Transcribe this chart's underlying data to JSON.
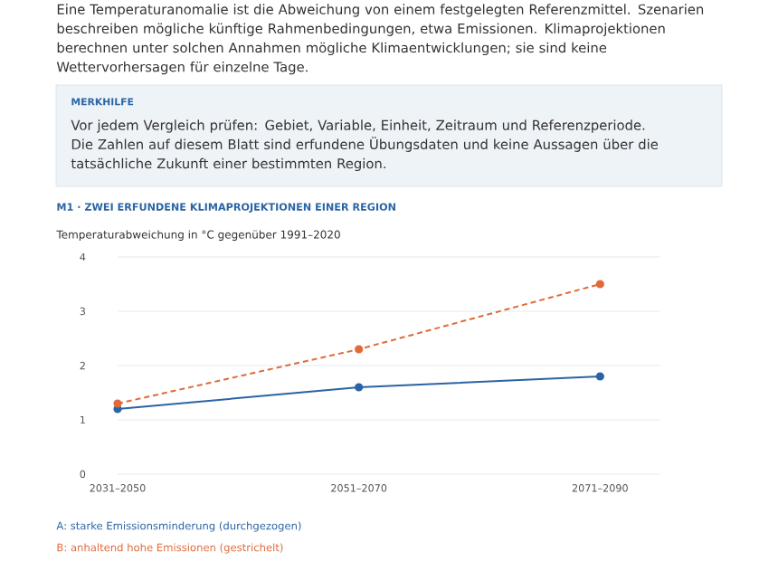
{
  "chart_data": {
    "type": "line",
    "title": "M1 · ZWEI ERFUNDENE KLIMAPROJEKTIONEN EINER REGION",
    "subtitle": "Temperaturabweichung in °C gegenüber 1991–2020",
    "annotations": [
      "Eine Temperaturanomalie ist die Abweichung von einem festgelegten Referenzmittel. Szenarien beschreiben mögliche künftige Rahmenbedingungen, etwa Emissionen. Klimaprojektionen berechnen unter solchen Annahmen mögliche Klimaentwicklungen; sie sind keine Wettervorhersagen für einzelne Tage.",
      "MERKHILFE",
      "Vor jedem Vergleich prüfen: Gebiet, Variable, Einheit, Zeitraum und Referenzperiode. Die Zahlen auf diesem Blatt sind erfundene Übungsdaten und keine Aussagen über die tatsächliche Zukunft einer bestimmten Region."
    ],
    "categories": [
      "2031–2050",
      "2051–2070",
      "2071–2090"
    ],
    "series": [
      {
        "name": "A: starke Emissionsminderung (durchgezogen)",
        "color": "#2a64a4",
        "values": [
          1.2,
          1.6,
          1.8
        ],
        "line_style": "solid"
      },
      {
        "name": "B: anhaltend hohe Emissionen (gestrichelt)",
        "color": "#e06a3a",
        "values": [
          1.3,
          2.3,
          3.5
        ],
        "line_style": "dashed"
      }
    ],
    "ylim": [
      0,
      4
    ],
    "yticks": [
      0,
      1,
      2,
      3,
      4
    ],
    "grid": "y",
    "legend": "bottom",
    "marker": "circle"
  }
}
